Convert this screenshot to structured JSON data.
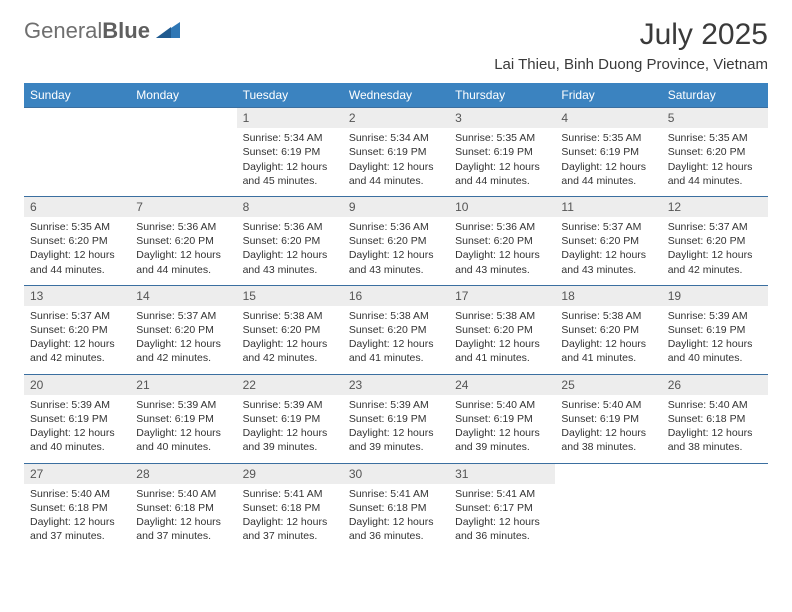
{
  "brand": {
    "part1": "General",
    "part2": "Blue"
  },
  "title": "July 2025",
  "location": "Lai Thieu, Binh Duong Province, Vietnam",
  "colors": {
    "header_bg": "#3b83c0",
    "header_fg": "#ffffff",
    "row_border": "#3b6fa0",
    "daynum_bg": "#ededed",
    "daynum_fg": "#555555",
    "brand_gray": "#6f6f6f",
    "brand_accent": "#2f77b5",
    "text": "#333333"
  },
  "weekdays": [
    "Sunday",
    "Monday",
    "Tuesday",
    "Wednesday",
    "Thursday",
    "Friday",
    "Saturday"
  ],
  "weeks": [
    [
      {
        "n": "",
        "sr": "",
        "ss": "",
        "dl": "",
        "empty": true
      },
      {
        "n": "",
        "sr": "",
        "ss": "",
        "dl": "",
        "empty": true
      },
      {
        "n": "1",
        "sr": "Sunrise: 5:34 AM",
        "ss": "Sunset: 6:19 PM",
        "dl": "Daylight: 12 hours and 45 minutes."
      },
      {
        "n": "2",
        "sr": "Sunrise: 5:34 AM",
        "ss": "Sunset: 6:19 PM",
        "dl": "Daylight: 12 hours and 44 minutes."
      },
      {
        "n": "3",
        "sr": "Sunrise: 5:35 AM",
        "ss": "Sunset: 6:19 PM",
        "dl": "Daylight: 12 hours and 44 minutes."
      },
      {
        "n": "4",
        "sr": "Sunrise: 5:35 AM",
        "ss": "Sunset: 6:19 PM",
        "dl": "Daylight: 12 hours and 44 minutes."
      },
      {
        "n": "5",
        "sr": "Sunrise: 5:35 AM",
        "ss": "Sunset: 6:20 PM",
        "dl": "Daylight: 12 hours and 44 minutes."
      }
    ],
    [
      {
        "n": "6",
        "sr": "Sunrise: 5:35 AM",
        "ss": "Sunset: 6:20 PM",
        "dl": "Daylight: 12 hours and 44 minutes."
      },
      {
        "n": "7",
        "sr": "Sunrise: 5:36 AM",
        "ss": "Sunset: 6:20 PM",
        "dl": "Daylight: 12 hours and 44 minutes."
      },
      {
        "n": "8",
        "sr": "Sunrise: 5:36 AM",
        "ss": "Sunset: 6:20 PM",
        "dl": "Daylight: 12 hours and 43 minutes."
      },
      {
        "n": "9",
        "sr": "Sunrise: 5:36 AM",
        "ss": "Sunset: 6:20 PM",
        "dl": "Daylight: 12 hours and 43 minutes."
      },
      {
        "n": "10",
        "sr": "Sunrise: 5:36 AM",
        "ss": "Sunset: 6:20 PM",
        "dl": "Daylight: 12 hours and 43 minutes."
      },
      {
        "n": "11",
        "sr": "Sunrise: 5:37 AM",
        "ss": "Sunset: 6:20 PM",
        "dl": "Daylight: 12 hours and 43 minutes."
      },
      {
        "n": "12",
        "sr": "Sunrise: 5:37 AM",
        "ss": "Sunset: 6:20 PM",
        "dl": "Daylight: 12 hours and 42 minutes."
      }
    ],
    [
      {
        "n": "13",
        "sr": "Sunrise: 5:37 AM",
        "ss": "Sunset: 6:20 PM",
        "dl": "Daylight: 12 hours and 42 minutes."
      },
      {
        "n": "14",
        "sr": "Sunrise: 5:37 AM",
        "ss": "Sunset: 6:20 PM",
        "dl": "Daylight: 12 hours and 42 minutes."
      },
      {
        "n": "15",
        "sr": "Sunrise: 5:38 AM",
        "ss": "Sunset: 6:20 PM",
        "dl": "Daylight: 12 hours and 42 minutes."
      },
      {
        "n": "16",
        "sr": "Sunrise: 5:38 AM",
        "ss": "Sunset: 6:20 PM",
        "dl": "Daylight: 12 hours and 41 minutes."
      },
      {
        "n": "17",
        "sr": "Sunrise: 5:38 AM",
        "ss": "Sunset: 6:20 PM",
        "dl": "Daylight: 12 hours and 41 minutes."
      },
      {
        "n": "18",
        "sr": "Sunrise: 5:38 AM",
        "ss": "Sunset: 6:20 PM",
        "dl": "Daylight: 12 hours and 41 minutes."
      },
      {
        "n": "19",
        "sr": "Sunrise: 5:39 AM",
        "ss": "Sunset: 6:19 PM",
        "dl": "Daylight: 12 hours and 40 minutes."
      }
    ],
    [
      {
        "n": "20",
        "sr": "Sunrise: 5:39 AM",
        "ss": "Sunset: 6:19 PM",
        "dl": "Daylight: 12 hours and 40 minutes."
      },
      {
        "n": "21",
        "sr": "Sunrise: 5:39 AM",
        "ss": "Sunset: 6:19 PM",
        "dl": "Daylight: 12 hours and 40 minutes."
      },
      {
        "n": "22",
        "sr": "Sunrise: 5:39 AM",
        "ss": "Sunset: 6:19 PM",
        "dl": "Daylight: 12 hours and 39 minutes."
      },
      {
        "n": "23",
        "sr": "Sunrise: 5:39 AM",
        "ss": "Sunset: 6:19 PM",
        "dl": "Daylight: 12 hours and 39 minutes."
      },
      {
        "n": "24",
        "sr": "Sunrise: 5:40 AM",
        "ss": "Sunset: 6:19 PM",
        "dl": "Daylight: 12 hours and 39 minutes."
      },
      {
        "n": "25",
        "sr": "Sunrise: 5:40 AM",
        "ss": "Sunset: 6:19 PM",
        "dl": "Daylight: 12 hours and 38 minutes."
      },
      {
        "n": "26",
        "sr": "Sunrise: 5:40 AM",
        "ss": "Sunset: 6:18 PM",
        "dl": "Daylight: 12 hours and 38 minutes."
      }
    ],
    [
      {
        "n": "27",
        "sr": "Sunrise: 5:40 AM",
        "ss": "Sunset: 6:18 PM",
        "dl": "Daylight: 12 hours and 37 minutes."
      },
      {
        "n": "28",
        "sr": "Sunrise: 5:40 AM",
        "ss": "Sunset: 6:18 PM",
        "dl": "Daylight: 12 hours and 37 minutes."
      },
      {
        "n": "29",
        "sr": "Sunrise: 5:41 AM",
        "ss": "Sunset: 6:18 PM",
        "dl": "Daylight: 12 hours and 37 minutes."
      },
      {
        "n": "30",
        "sr": "Sunrise: 5:41 AM",
        "ss": "Sunset: 6:18 PM",
        "dl": "Daylight: 12 hours and 36 minutes."
      },
      {
        "n": "31",
        "sr": "Sunrise: 5:41 AM",
        "ss": "Sunset: 6:17 PM",
        "dl": "Daylight: 12 hours and 36 minutes."
      },
      {
        "n": "",
        "sr": "",
        "ss": "",
        "dl": "",
        "empty": true
      },
      {
        "n": "",
        "sr": "",
        "ss": "",
        "dl": "",
        "empty": true
      }
    ]
  ]
}
